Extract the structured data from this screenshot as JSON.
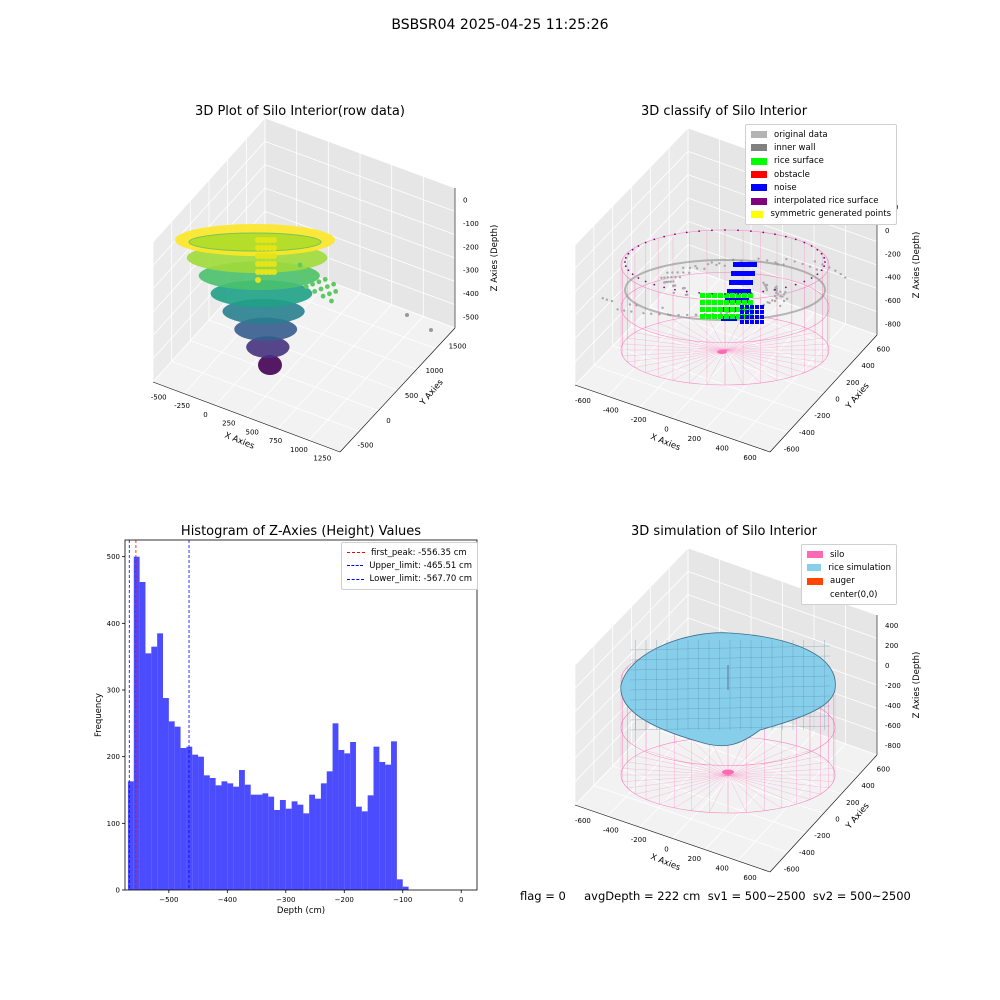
{
  "suptitle": "BSBSR04 2025-04-25 11:25:26",
  "footer": "flag = 0     avgDepth = 222 cm  sv1 = 500~2500  sv2 = 500~2500",
  "chart_data": [
    {
      "type": "scatter3d",
      "title": "3D Plot of Silo Interior(row data)",
      "xlabel": "X Axies",
      "ylabel": "Y Axies",
      "zlabel": "Z Axies (Depth)",
      "x_ticks": [
        "-500",
        "-250",
        "0",
        "250",
        "500",
        "750",
        "1000",
        "1250"
      ],
      "y_ticks": [
        "-500",
        "0",
        "500",
        "1000",
        "1500"
      ],
      "z_ticks": [
        "0",
        "-100",
        "-200",
        "-300",
        "-400",
        "-500"
      ],
      "colormap": "viridis"
    },
    {
      "type": "scatter3d",
      "title": "3D classify of Silo Interior",
      "xlabel": "X Axies",
      "ylabel": "Y Axies",
      "zlabel": "Z Axies (Depth)",
      "x_ticks": [
        "-600",
        "-400",
        "-200",
        "0",
        "200",
        "400",
        "600"
      ],
      "y_ticks": [
        "-600",
        "-400",
        "-200",
        "0",
        "200",
        "400",
        "600"
      ],
      "z_ticks": [
        "200",
        "0",
        "-200",
        "-400",
        "-600",
        "-800"
      ],
      "legend": [
        {
          "label": "original data",
          "color": "#b3b3b3"
        },
        {
          "label": "inner wall",
          "color": "#808080"
        },
        {
          "label": "rice surface",
          "color": "#00ff00"
        },
        {
          "label": "obstacle",
          "color": "#ff0000"
        },
        {
          "label": "noise",
          "color": "#0000ff"
        },
        {
          "label": "interpolated rice surface",
          "color": "#800080"
        },
        {
          "label": "symmetric generated points",
          "color": "#ffff00"
        }
      ],
      "wire_color": "#ff69b4"
    },
    {
      "type": "bar",
      "title": "Histogram of Z-Axies (Height) Values",
      "xlabel": "Depth (cm)",
      "ylabel": "Frequency",
      "xlim": [
        -575,
        27
      ],
      "ylim": [
        0,
        525
      ],
      "x_ticks": [
        -500,
        -400,
        -300,
        -200,
        -100,
        0
      ],
      "y_ticks": [
        0,
        100,
        200,
        300,
        400,
        500
      ],
      "bin_width": 10,
      "bin_start": -570,
      "color": "#0000ff",
      "values": [
        163,
        500,
        462,
        355,
        365,
        385,
        288,
        253,
        245,
        213,
        215,
        203,
        200,
        172,
        168,
        157,
        163,
        160,
        155,
        180,
        158,
        143,
        143,
        145,
        140,
        120,
        135,
        122,
        133,
        128,
        115,
        143,
        137,
        160,
        178,
        250,
        210,
        205,
        222,
        125,
        118,
        142,
        215,
        192,
        188,
        223,
        16,
        5
      ],
      "lines": [
        {
          "label": "first_peak: -556.35 cm",
          "x": -556.35,
          "color": "#ff0000"
        },
        {
          "label": "Upper_limit: -465.51 cm",
          "x": -465.51,
          "color": "#0000ff"
        },
        {
          "label": "Lower_limit: -567.70 cm",
          "x": -567.7,
          "color": "#0000ff"
        }
      ]
    },
    {
      "type": "surface3d",
      "title": "3D simulation of Silo Interior",
      "xlabel": "X Axies",
      "ylabel": "Y Axies",
      "zlabel": "Z Axies (Depth)",
      "x_ticks": [
        "-600",
        "-400",
        "-200",
        "0",
        "200",
        "400",
        "600"
      ],
      "y_ticks": [
        "-600",
        "-400",
        "-200",
        "0",
        "200",
        "400",
        "600"
      ],
      "z_ticks": [
        "400",
        "200",
        "0",
        "-200",
        "-400",
        "-600",
        "-800"
      ],
      "legend": [
        {
          "label": "silo",
          "color": "#ff69b4"
        },
        {
          "label": "rice simulation",
          "color": "#87ceeb"
        },
        {
          "label": "auger",
          "color": "#ff4500"
        },
        {
          "label": "center(0,0)",
          "color": ""
        }
      ]
    }
  ]
}
